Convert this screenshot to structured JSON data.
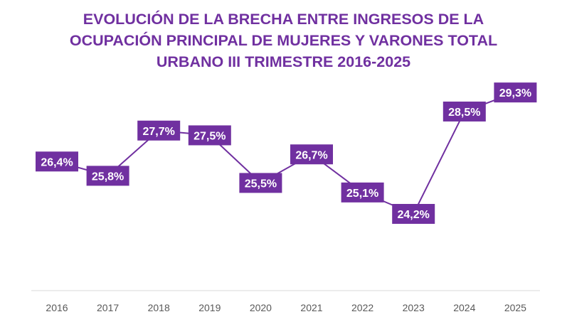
{
  "chart_data": {
    "type": "line",
    "title_lines": [
      "EVOLUCIÓN DE LA BRECHA ENTRE INGRESOS DE LA",
      "OCUPACIÓN PRINCIPAL DE MUJERES Y VARONES TOTAL",
      "URBANO III TRIMESTRE 2016-2025"
    ],
    "title": "EVOLUCIÓN DE LA BRECHA ENTRE INGRESOS DE LA OCUPACIÓN PRINCIPAL DE MUJERES Y VARONES TOTAL URBANO III TRIMESTRE 2016-2025",
    "xlabel": "",
    "ylabel": "",
    "categories": [
      "2016",
      "2017",
      "2018",
      "2019",
      "2020",
      "2021",
      "2022",
      "2023",
      "2024",
      "2025"
    ],
    "values": [
      26.4,
      25.8,
      27.7,
      27.5,
      25.5,
      26.7,
      25.1,
      24.2,
      28.5,
      29.3
    ],
    "data_labels": [
      "26,4%",
      "25,8%",
      "27,7%",
      "27,5%",
      "25,5%",
      "26,7%",
      "25,1%",
      "24,2%",
      "28,5%",
      "29,3%"
    ],
    "unit": "%",
    "grid": false,
    "legend": "none",
    "colors": {
      "line": "#7030a0",
      "label_bg": "#7030a0",
      "label_text": "#ffffff",
      "title": "#7030a0",
      "axis": "#d9d9d9",
      "tick_text": "#595959"
    }
  }
}
